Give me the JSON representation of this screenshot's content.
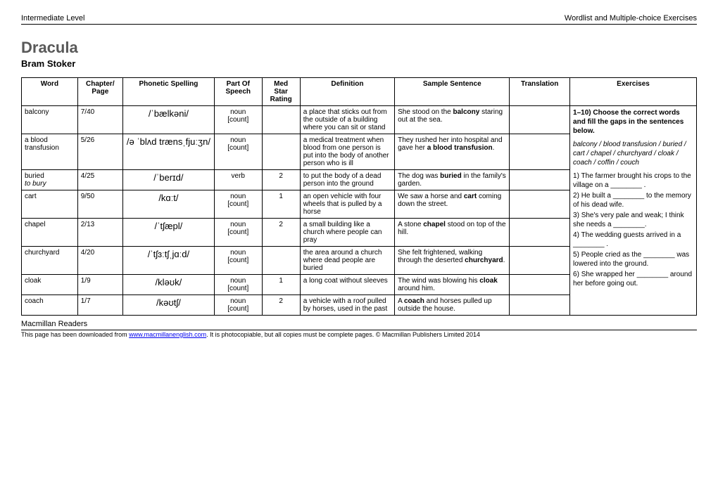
{
  "header": {
    "left": "Intermediate Level",
    "right": "Wordlist and Multiple-choice Exercises"
  },
  "title": "Dracula",
  "author": "Bram Stoker",
  "columns": {
    "word": "Word",
    "chapter": "Chapter/\nPage",
    "phonetic": "Phonetic Spelling",
    "pos": "Part Of\nSpeech",
    "star": "Med\nStar\nRating",
    "definition": "Definition",
    "sample": "Sample Sentence",
    "translation": "Translation",
    "exercises": "Exercises"
  },
  "rows": [
    {
      "word": "balcony",
      "chapter": "7/40",
      "phonetic": "/ˈbælkəni/",
      "pos": "noun\n[count]",
      "star": "",
      "definition": "a place that sticks out from the outside of a building where you can sit or stand",
      "sample_pre": "She stood on the ",
      "sample_bold": "balcony",
      "sample_post": " staring out at the sea."
    },
    {
      "word": "a blood transfusion",
      "chapter": "5/26",
      "phonetic": "/ə ˈblʌd trænsˌfjuːʒn/",
      "pos": "noun\n[count]",
      "star": "",
      "definition": "a medical treatment when blood from one person is put into the body of another person who is ill",
      "sample_pre": "They rushed her into hospital and gave her ",
      "sample_bold": "a blood transfusion",
      "sample_post": "."
    },
    {
      "word": "buried",
      "word_ital": "to bury",
      "chapter": "4/25",
      "phonetic": "/ˈberɪd/",
      "pos": "verb",
      "star": "2",
      "definition": "to put the body of a dead person into the ground",
      "sample_pre": "The dog was ",
      "sample_bold": "buried",
      "sample_post": " in the family's garden."
    },
    {
      "word": "cart",
      "chapter": "9/50",
      "phonetic": "/kɑːt/",
      "pos": "noun\n[count]",
      "star": "1",
      "definition": "an open vehicle with four wheels that is pulled by a horse",
      "sample_pre": "We saw a horse and ",
      "sample_bold": "cart",
      "sample_post": " coming down the street."
    },
    {
      "word": "chapel",
      "chapter": "2/13",
      "phonetic": "/ˈtʃæpl/",
      "pos": "noun\n[count]",
      "star": "2",
      "definition": "a small building like a church where people can pray",
      "sample_pre": "A stone ",
      "sample_bold": "chapel",
      "sample_post": " stood on top of the hill."
    },
    {
      "word": "churchyard",
      "chapter": "4/20",
      "phonetic": "/ˈtʃɜːtʃˌjɑːd/",
      "pos": "noun\n[count]",
      "star": "",
      "definition": "the area around a church where dead people are buried",
      "sample_pre": "She felt frightened, walking through the deserted ",
      "sample_bold": "churchyard",
      "sample_post": "."
    },
    {
      "word": "cloak",
      "chapter": "1/9",
      "phonetic": "/kləʊk/",
      "pos": "noun\n[count]",
      "star": "1",
      "definition": "a long coat without sleeves",
      "sample_pre": "The wind was blowing his ",
      "sample_bold": "cloak",
      "sample_post": " around him."
    },
    {
      "word": "coach",
      "chapter": "1/7",
      "phonetic": "/kəʊtʃ/",
      "pos": "noun\n[count]",
      "star": "2",
      "definition": "a vehicle with a roof pulled by horses, used in the past",
      "sample_pre": "A ",
      "sample_bold": "coach",
      "sample_post": " and horses pulled up outside the house."
    }
  ],
  "exercises": {
    "heading": "1–10) Choose the correct words and fill the gaps in the sentences below.",
    "wordbank": "balcony / blood transfusion / buried / cart / chapel / churchyard / cloak / coach / coffin / couch",
    "items": [
      "1) The farmer brought his crops to the village on a ________ .",
      "2) He built a ________ to the memory of his dead wife.",
      "3) She's very pale and weak; I think she needs a ________.",
      "4) The wedding guests arrived in a ________ .",
      "5) People cried as the ________ was lowered into the ground.",
      "6) She wrapped her ________ around her before going out."
    ]
  },
  "footer": {
    "brand": "Macmillan Readers",
    "text_pre": "This page has been downloaded from ",
    "link": "www.macmillanenglish.com",
    "text_post": ". It is photocopiable, but all copies must be complete pages. © Macmillan Publishers Limited 2014"
  }
}
